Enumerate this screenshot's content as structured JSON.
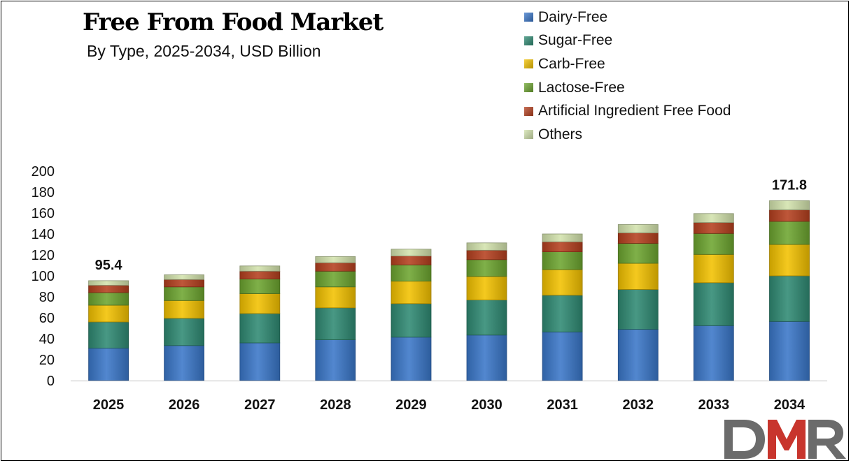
{
  "header": {
    "title": "Free From Food Market",
    "subtitle": "By Type, 2025-2034, USD Billion"
  },
  "chart_data": {
    "type": "bar",
    "stacked": true,
    "title": "Free From Food Market",
    "subtitle": "By Type, 2025-2034, USD Billion",
    "xlabel": "",
    "ylabel": "",
    "ylim": [
      0,
      200
    ],
    "yticks": [
      0,
      20,
      40,
      60,
      80,
      100,
      120,
      140,
      160,
      180,
      200
    ],
    "grid": false,
    "legend_position": "top-right",
    "categories": [
      "2025",
      "2026",
      "2027",
      "2028",
      "2029",
      "2030",
      "2031",
      "2032",
      "2033",
      "2034"
    ],
    "series": [
      {
        "name": "Dairy-Free",
        "color": "#3a77c9",
        "values": [
          31.0,
          33.5,
          36.0,
          39.0,
          41.5,
          43.5,
          46.5,
          49.0,
          52.5,
          56.5
        ]
      },
      {
        "name": "Sugar-Free",
        "color": "#2f8a73",
        "values": [
          25.0,
          26.0,
          28.0,
          30.5,
          32.0,
          33.5,
          35.0,
          38.0,
          41.0,
          43.5
        ]
      },
      {
        "name": "Carb-Free",
        "color": "#f3c200",
        "values": [
          16.0,
          17.0,
          19.0,
          20.0,
          21.5,
          22.5,
          24.5,
          25.0,
          27.0,
          30.0
        ]
      },
      {
        "name": "Lactose-Free",
        "color": "#6da530",
        "values": [
          12.0,
          13.0,
          14.0,
          15.0,
          15.5,
          16.0,
          17.0,
          19.0,
          20.0,
          22.0
        ]
      },
      {
        "name": "Artificial Ingredient Free Food",
        "color": "#b5401f",
        "values": [
          7.0,
          7.0,
          7.5,
          8.0,
          8.5,
          9.0,
          9.5,
          10.0,
          10.5,
          11.0
        ]
      },
      {
        "name": "Others",
        "color": "#d3e3ad",
        "values": [
          4.4,
          4.5,
          5.0,
          6.0,
          6.5,
          7.0,
          7.5,
          8.0,
          8.5,
          8.8
        ]
      }
    ],
    "data_labels": [
      {
        "category": "2025",
        "text": "95.4"
      },
      {
        "category": "2034",
        "text": "171.8"
      }
    ]
  },
  "logo": {
    "text": "DMR",
    "colors": {
      "d": "#6b6b6b",
      "m": "#c8352d",
      "r": "#6b6b6b"
    }
  }
}
